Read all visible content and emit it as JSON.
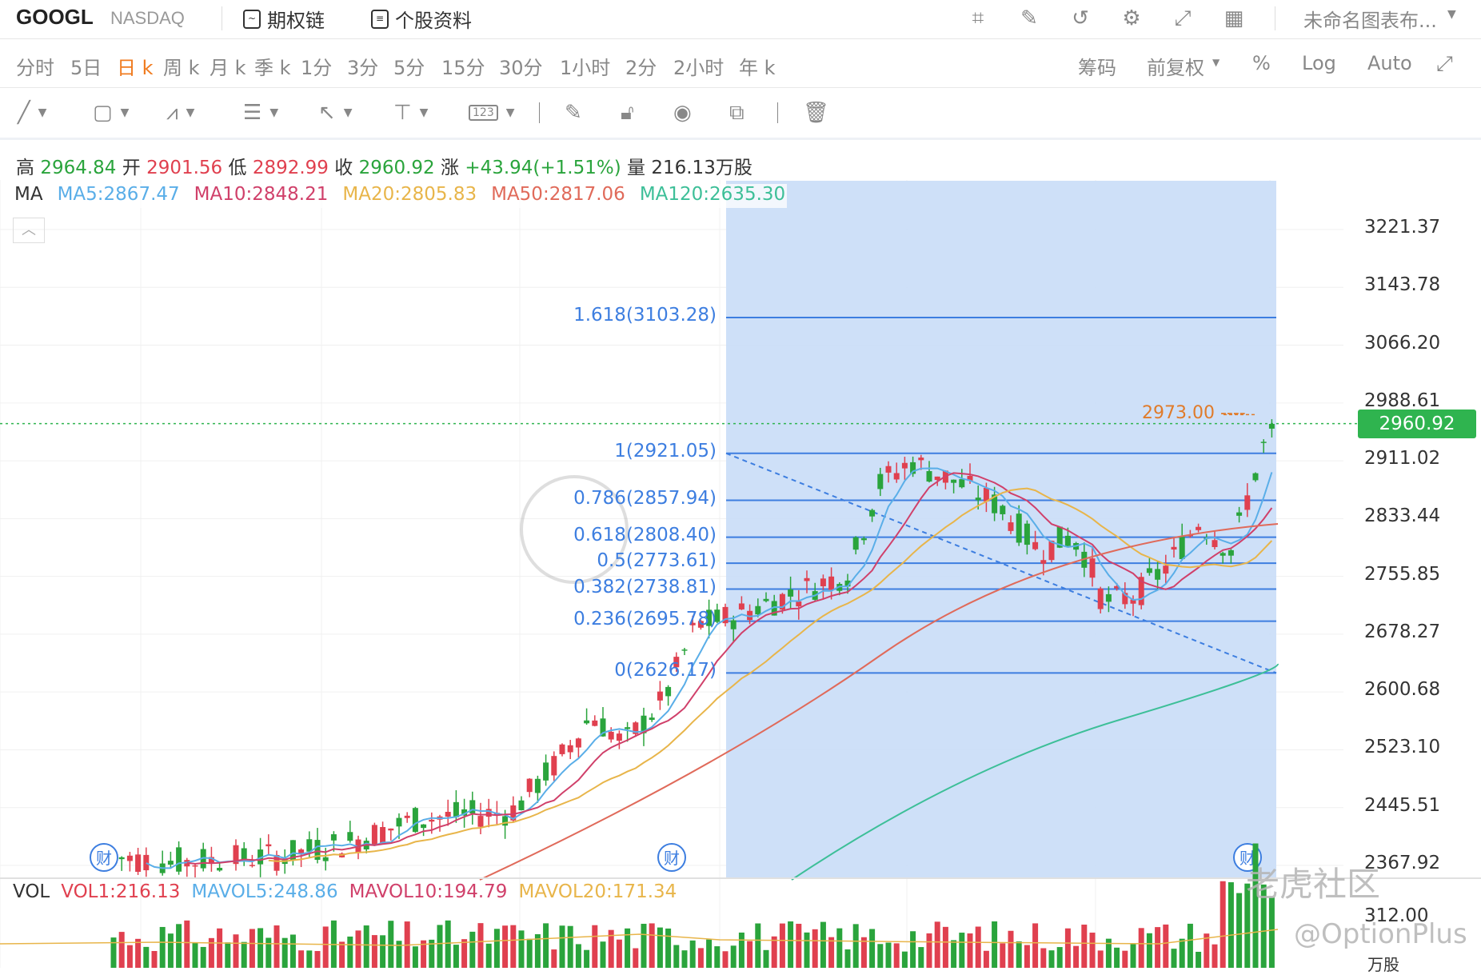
{
  "header": {
    "ticker": "GOOGL",
    "exchange": "NASDAQ",
    "option_chain": "期权链",
    "profile": "个股资料",
    "layout_name": "未命名图表布..."
  },
  "periods": [
    "分时",
    "5日",
    "日 k",
    "周 k",
    "月 k",
    "季 k",
    "1分",
    "3分",
    "5分",
    "15分",
    "30分",
    "1小时",
    "2分",
    "2小时",
    "年 k"
  ],
  "active_period": "日 k",
  "right_tools": {
    "chips": "筹码",
    "adjust": "前复权",
    "percent": "%",
    "log": "Log",
    "auto": "Auto"
  },
  "ohlc": {
    "high_label": "高",
    "high": "2964.84",
    "open_label": "开",
    "open": "2901.56",
    "low_label": "低",
    "low": "2892.99",
    "close_label": "收",
    "close": "2960.92",
    "change_label": "涨",
    "change": "+43.94(+1.51%)",
    "volume_label": "量",
    "volume": "216.13万股"
  },
  "ma": {
    "label": "MA",
    "ma5": "MA5:2867.47",
    "ma10": "MA10:2848.21",
    "ma20": "MA20:2805.83",
    "ma50": "MA50:2817.06",
    "ma120": "MA120:2635.30"
  },
  "vol": {
    "label": "VOL",
    "vol1": "VOL1:216.13",
    "mavol5": "MAVOL5:248.86",
    "mavol10": "MAVOL10:194.79",
    "mavol20": "MAVOL20:171.34"
  },
  "colors": {
    "up": "#2aa43c",
    "down": "#e0404f",
    "ma5": "#5aaee8",
    "ma10": "#d0406a",
    "ma20": "#e8b54a",
    "ma50": "#e06a5a",
    "ma120": "#3dbf98",
    "fib": "#3d7ee0",
    "fib_fill": "#c9ddf7"
  },
  "price_axis": [
    "3221.37",
    "3143.78",
    "3066.20",
    "2988.61",
    "2911.02",
    "2833.44",
    "2755.85",
    "2678.27",
    "2600.68",
    "2523.10",
    "2445.51",
    "2367.92"
  ],
  "vol_axis": [
    "312.00",
    "万股"
  ],
  "current_price": "2960.92",
  "peak_marker": "2973.00 ----",
  "earnings_marker": "财",
  "fib_levels": [
    {
      "label": "1.618(3103.28)",
      "price": 3103.28
    },
    {
      "label": "1(2921.05)",
      "price": 2921.05
    },
    {
      "label": "0.786(2857.94)",
      "price": 2857.94
    },
    {
      "label": "0.618(2808.40)",
      "price": 2808.4
    },
    {
      "label": "0.5(2773.61)",
      "price": 2773.61
    },
    {
      "label": "0.382(2738.81)",
      "price": 2738.81
    },
    {
      "label": "0.236(2695.78)",
      "price": 2695.78
    },
    {
      "label": "0(2626.17)",
      "price": 2626.17
    }
  ],
  "watermark": {
    "brand": "老虎社区",
    "handle": "@OptionPlus"
  }
}
